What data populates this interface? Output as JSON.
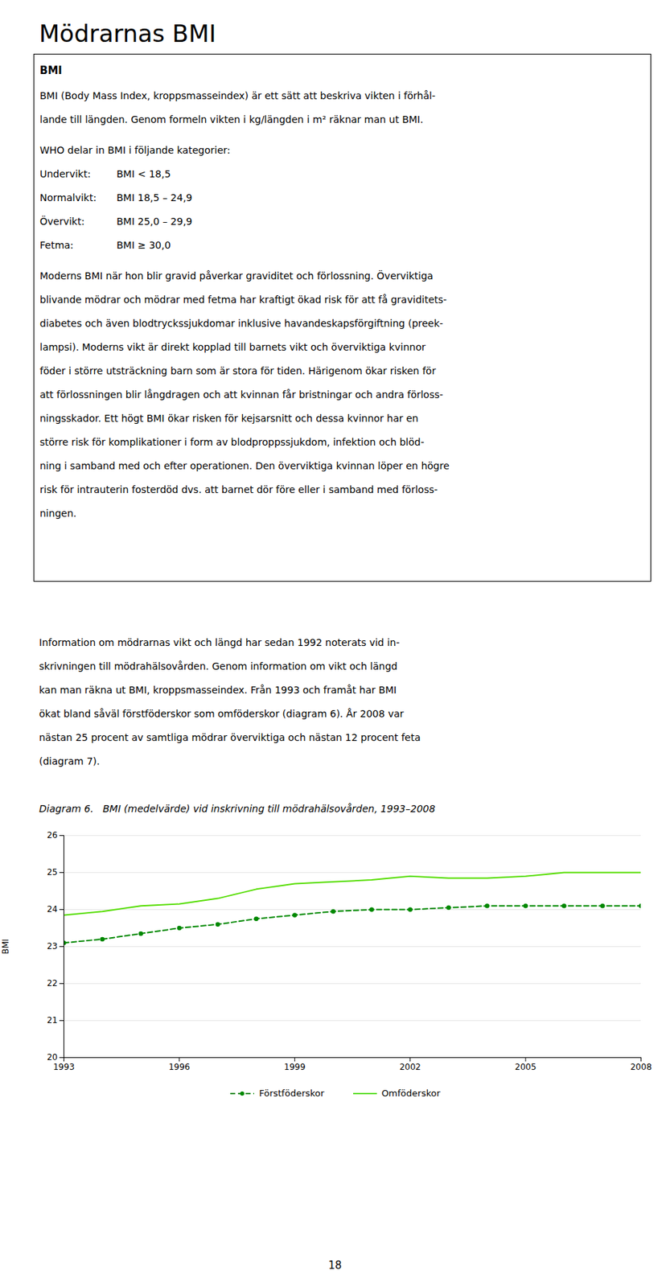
{
  "page_title": "Mödrarnas BMI",
  "box": {
    "title": "BMI",
    "intro": [
      "BMI (Body Mass Index, kroppsmasseindex) är ett sätt att beskriva vikten i förhål-",
      "lande till längden. Genom formeln vikten i kg/längden i m² räknar man ut BMI."
    ],
    "categories_intro": "WHO delar in BMI i följande kategorier:",
    "categories": [
      [
        "Undervikt:",
        "BMI < 18,5"
      ],
      [
        "Normalvikt:",
        "BMI 18,5 – 24,9"
      ],
      [
        "Övervikt:",
        "BMI 25,0 – 29,9"
      ],
      [
        "Fetma:",
        "BMI ≥ 30,0"
      ]
    ],
    "text": [
      "Moderns BMI när hon blir gravid påverkar graviditet och förlossning. Överviktiga",
      "blivande mödrar och mödrar med fetma har kraftigt ökad risk för att få graviditets-",
      "diabetes och även blodtryckssjukdomar inklusive havandeskapsförgiftning (preek-",
      "lampsi). Moderns vikt är direkt kopplad till barnets vikt och överviktiga kvinnor",
      "föder i större utsträckning barn som är stora för tiden. Härigenom ökar risken för",
      "att förlossningen blir långdragen och att kvinnan får bristningar och andra förloss-",
      "ningsskador. Ett högt BMI ökar risken för kejsarsnitt och dessa kvinnor har en",
      "större risk för komplikationer i form av blodproppssjukdom, infektion och blöd-",
      "ning i samband med och efter operationen. Den överviktiga kvinnan löper en högre",
      "risk för intrauterin fosterdöd dvs. att barnet dör före eller i samband med förloss-",
      "ningen."
    ]
  },
  "text": [
    "Information om mödrarnas vikt och längd har sedan 1992 noterats vid in-",
    "skrivningen till mödrahälsovården. Genom information om vikt och längd",
    "kan man räkna ut BMI, kroppsmasseindex. Från 1993 och framåt har BMI",
    "ökat bland såväl förstföderskor som omföderskor (diagram 6). År 2008 var",
    "nästan 25 procent av samtliga mödrar överviktiga och nästan 12 procent feta",
    "(diagram 7)."
  ],
  "page_number": "18",
  "chart_data": {
    "type": "line",
    "title": "Diagram 6.   BMI (medelvärde) vid inskrivning till mödrahälsovården, 1993–2008",
    "y_label": "BMI",
    "x": [
      1993,
      1994,
      1995,
      1996,
      1997,
      1998,
      1999,
      2000,
      2001,
      2002,
      2003,
      2004,
      2005,
      2006,
      2007,
      2008
    ],
    "xlim": [
      1993,
      2008
    ],
    "xticks": [
      1993,
      1996,
      1999,
      2002,
      2005,
      2008
    ],
    "ylim": [
      20,
      26
    ],
    "yticks": [
      20,
      21,
      22,
      23,
      24,
      25,
      26
    ],
    "grid": true,
    "legend": "bottom",
    "series": [
      {
        "name": "Förstföderskor",
        "color": "#008800",
        "line_style": "dashed",
        "marker": "circle",
        "values": [
          23.1,
          23.2,
          23.35,
          23.5,
          23.6,
          23.75,
          23.85,
          23.95,
          24.0,
          24.0,
          24.05,
          24.1,
          24.1,
          24.1,
          24.1,
          24.1
        ]
      },
      {
        "name": "Omföderskor",
        "color": "#55dd00",
        "line_style": "solid",
        "values": [
          23.85,
          23.95,
          24.1,
          24.15,
          24.3,
          24.55,
          24.7,
          24.75,
          24.8,
          24.9,
          24.85,
          24.85,
          24.9,
          25.0,
          25.0,
          25.0
        ]
      }
    ]
  }
}
